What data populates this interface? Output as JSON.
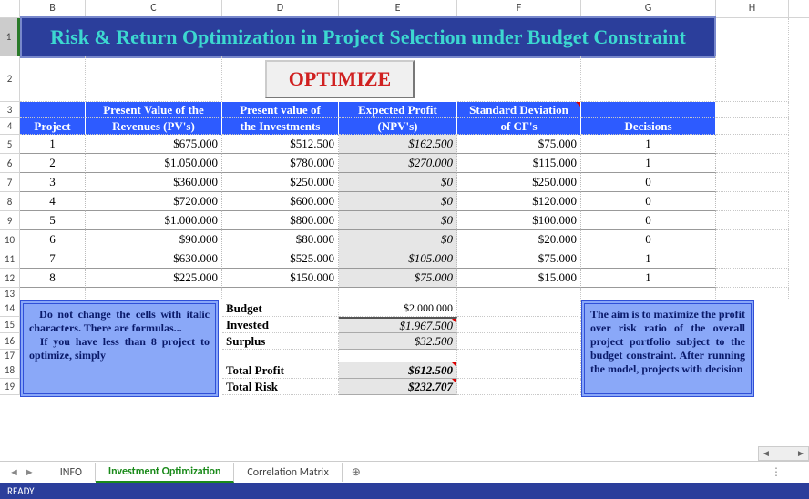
{
  "columns": [
    "B",
    "C",
    "D",
    "E",
    "F",
    "G",
    "H"
  ],
  "col_widths": {
    "B": 72,
    "C": 150,
    "D": 128,
    "E": 130,
    "F": 136,
    "G": 148,
    "H": 80
  },
  "title": "Risk & Return Optimization in Project Selection under Budget Constraint",
  "optimize_label": "OPTIMIZE",
  "headers": {
    "project": "Project",
    "pv_rev1": "Present Value of the",
    "pv_rev2": "Revenues (PV's)",
    "pv_inv1": "Present value of",
    "pv_inv2": "the Investments",
    "npv1": "Expected Profit",
    "npv2": "(NPV's)",
    "sd1": "Standard Deviation",
    "sd2": "of CF's",
    "dec": "Decisions"
  },
  "rows": [
    {
      "p": "1",
      "rev": "$675.000",
      "inv": "$512.500",
      "npv": "$162.500",
      "sd": "$75.000",
      "dec": "1"
    },
    {
      "p": "2",
      "rev": "$1.050.000",
      "inv": "$780.000",
      "npv": "$270.000",
      "sd": "$115.000",
      "dec": "1"
    },
    {
      "p": "3",
      "rev": "$360.000",
      "inv": "$250.000",
      "npv": "$0",
      "sd": "$250.000",
      "dec": "0"
    },
    {
      "p": "4",
      "rev": "$720.000",
      "inv": "$600.000",
      "npv": "$0",
      "sd": "$120.000",
      "dec": "0"
    },
    {
      "p": "5",
      "rev": "$1.000.000",
      "inv": "$800.000",
      "npv": "$0",
      "sd": "$100.000",
      "dec": "0"
    },
    {
      "p": "6",
      "rev": "$90.000",
      "inv": "$80.000",
      "npv": "$0",
      "sd": "$20.000",
      "dec": "0"
    },
    {
      "p": "7",
      "rev": "$630.000",
      "inv": "$525.000",
      "npv": "$105.000",
      "sd": "$75.000",
      "dec": "1"
    },
    {
      "p": "8",
      "rev": "$225.000",
      "inv": "$150.000",
      "npv": "$75.000",
      "sd": "$15.000",
      "dec": "1"
    }
  ],
  "summary": {
    "budget_lbl": "Budget",
    "budget_val": "$2.000.000",
    "invested_lbl": "Invested",
    "invested_val": "$1.967.500",
    "surplus_lbl": "Surplus",
    "surplus_val": "$32.500",
    "profit_lbl": "Total Profit",
    "profit_val": "$612.500",
    "risk_lbl": "Total Risk",
    "risk_val": "$232.707"
  },
  "note_left": "  Do not change the cells with italic characters. There are formulas...\n  If you have less than 8 project to optimize, simply",
  "note_right": "The aim is to maximize the profit over risk ratio of the overall project portfolio subject to the budget constraint. After running the model, projects with decision",
  "tabs": [
    "INFO",
    "Investment Optimization",
    "Correlation Matrix"
  ],
  "active_tab": 1,
  "status": "READY",
  "row_nums": [
    1,
    2,
    3,
    4,
    5,
    6,
    7,
    8,
    9,
    10,
    11,
    12,
    13,
    14,
    15,
    16,
    17,
    18,
    19
  ],
  "colors": {
    "title_bg": "#2b3e9b",
    "title_fg": "#3cd8d0",
    "hdr_bg": "#2d5bff",
    "note_bg": "#8aa8f8",
    "note_border": "#3050d8",
    "optimize_fg": "#d02020",
    "active_tab_fg": "#1a8a1a"
  }
}
